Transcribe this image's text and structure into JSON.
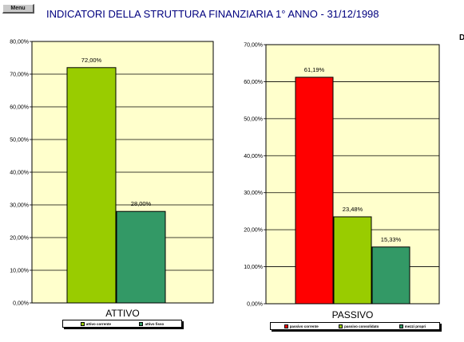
{
  "menu": {
    "label": "Menu"
  },
  "page": {
    "title": "INDICATORI DELLA STRUTTURA FINANZIARIA 1° ANNO - 31/12/1998"
  },
  "chart_data": [
    {
      "type": "bar",
      "xlabel": "ATTIVO",
      "ylabel": "",
      "ylim": [
        0,
        80
      ],
      "yticks": [
        "0,00%",
        "10,00%",
        "20,00%",
        "30,00%",
        "40,00%",
        "50,00%",
        "60,00%",
        "70,00%",
        "80,00%"
      ],
      "grid": true,
      "plot_background": "#ffffcc",
      "categories": [
        "attivo corrente",
        "attivo fisso"
      ],
      "values": [
        72.0,
        28.0
      ],
      "data_labels": [
        "72,00%",
        "28,00%"
      ],
      "colors": [
        "#99cc00",
        "#339966"
      ],
      "legend": {
        "position": "bottom",
        "entries": [
          "attivo corrente",
          "attivo fisso"
        ]
      }
    },
    {
      "type": "bar",
      "xlabel": "PASSIVO",
      "ylabel": "",
      "ylim": [
        0,
        70
      ],
      "yticks": [
        "0,00%",
        "10,00%",
        "20,00%",
        "30,00%",
        "40,00%",
        "50,00%",
        "60,00%",
        "70,00%"
      ],
      "grid": true,
      "plot_background": "#ffffcc",
      "categories": [
        "passivo corrente",
        "passivo consolidato",
        "mezzi propri"
      ],
      "values": [
        61.19,
        23.48,
        15.33
      ],
      "data_labels": [
        "61,19%",
        "23,48%",
        "15,33%"
      ],
      "colors": [
        "#ff0000",
        "#99cc00",
        "#339966"
      ],
      "legend": {
        "position": "bottom",
        "entries": [
          "passivo corrente",
          "passivo consolidato",
          "mezzi propri"
        ]
      }
    }
  ]
}
